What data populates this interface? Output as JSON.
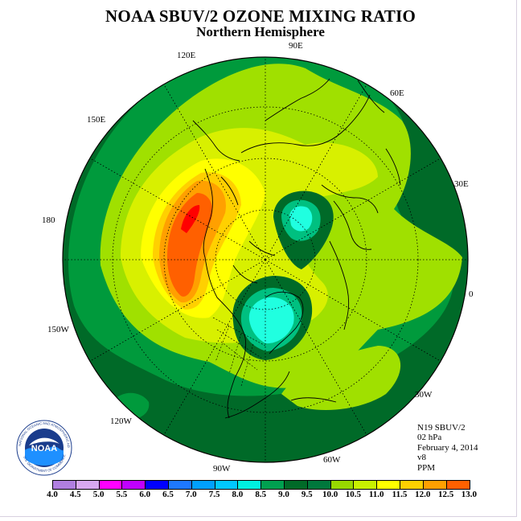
{
  "header": {
    "title": "NOAA SBUV/2 OZONE MIXING RATIO",
    "subtitle": "Northern Hemisphere"
  },
  "longitude_labels": [
    "90E",
    "60E",
    "30E",
    "0",
    "30W",
    "60W",
    "90W",
    "120W",
    "150W",
    "180",
    "150E",
    "120E"
  ],
  "info": {
    "instrument": "N19 SBUV/2",
    "level": "02 hPa",
    "date": "February 4, 2014",
    "version": "v8",
    "units": "PPM"
  },
  "logo": {
    "text": "NOAA",
    "ring_text_top": "NATIONAL OCEANIC AND ATMOSPHERIC ADMINISTRATION",
    "ring_text_bottom": "U.S. DEPARTMENT OF COMMERCE"
  },
  "colorbar": {
    "labels": [
      "4.0",
      "4.5",
      "5.0",
      "5.5",
      "6.0",
      "6.5",
      "7.0",
      "7.5",
      "8.0",
      "8.5",
      "9.0",
      "9.5",
      "10.0",
      "10.5",
      "11.0",
      "11.5",
      "12.0",
      "12.5",
      "13.0"
    ],
    "colors": [
      "#b07fe0",
      "#d8a8f0",
      "#ff00ff",
      "#c000ff",
      "#0000ff",
      "#1e78ff",
      "#00a0ff",
      "#00c8ff",
      "#00f0e0",
      "#00a050",
      "#006a28",
      "#00783c",
      "#98d800",
      "#c8f000",
      "#ffff00",
      "#ffd000",
      "#ffa000",
      "#ff6000",
      "#ff0000",
      "#8b4513"
    ]
  },
  "colors": {
    "dark_green": "#006a28",
    "medium_green": "#009a3c",
    "lime": "#a0e000",
    "yellow_green": "#d8f000",
    "yellow": "#ffff00",
    "orange": "#ffa000",
    "red_orange": "#ff6000",
    "red": "#ff0000",
    "cyan": "#20ffe0"
  }
}
